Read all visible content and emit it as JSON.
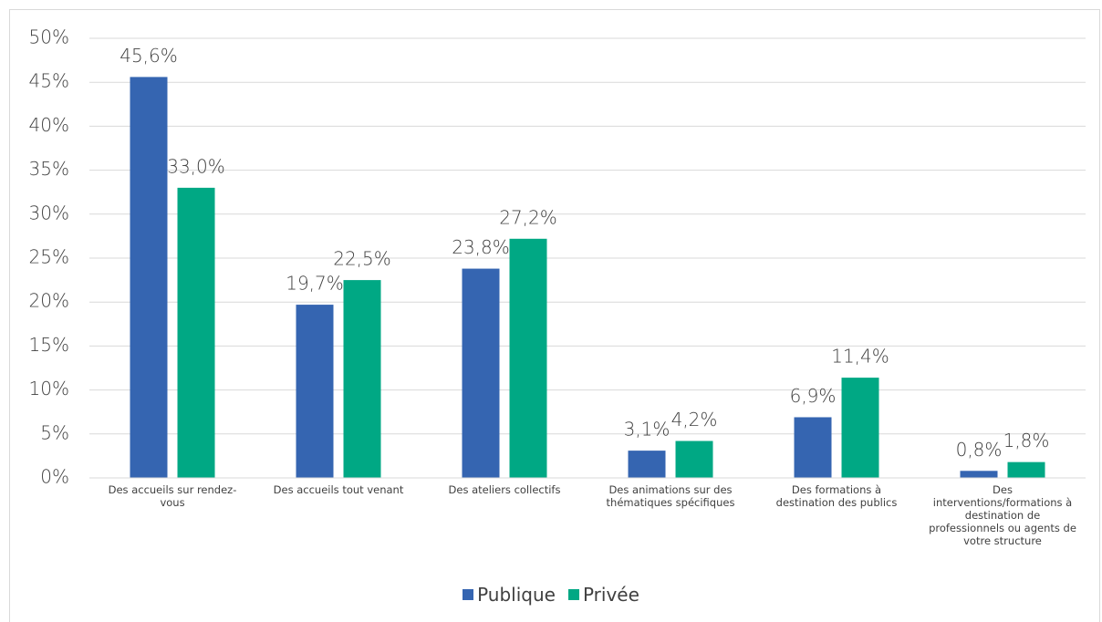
{
  "chart_data": {
    "type": "bar",
    "categories": [
      "Des accueils sur rendez-vous",
      "Des accueils tout venant",
      "Des ateliers collectifs",
      "Des animations sur des thématiques spécifiques",
      "Des formations à destination des publics",
      "Des interventions/formations à destination de professionnels ou agents de votre structure"
    ],
    "series": [
      {
        "name": "Publique",
        "color": "#3565b1",
        "values": [
          45.6,
          19.7,
          23.8,
          3.1,
          6.9,
          0.8
        ],
        "value_labels": [
          "45,6%",
          "19,7%",
          "23,8%",
          "3,1%",
          "6,9%",
          "0,8%"
        ]
      },
      {
        "name": "Privée",
        "color": "#00a884",
        "values": [
          33.0,
          22.5,
          27.2,
          4.2,
          11.4,
          1.8
        ],
        "value_labels": [
          "33,0%",
          "22,5%",
          "27,2%",
          "4,2%",
          "11,4%",
          "1,8%"
        ]
      }
    ],
    "ylim": [
      0,
      50
    ],
    "yticks": [
      {
        "value": 0,
        "label": "0%"
      },
      {
        "value": 5,
        "label": "5%"
      },
      {
        "value": 10,
        "label": "10%"
      },
      {
        "value": 15,
        "label": "15%"
      },
      {
        "value": 20,
        "label": "20%"
      },
      {
        "value": 25,
        "label": "25%"
      },
      {
        "value": 30,
        "label": "30%"
      },
      {
        "value": 35,
        "label": "35%"
      },
      {
        "value": 40,
        "label": "40%"
      },
      {
        "value": 45,
        "label": "45%"
      },
      {
        "value": 50,
        "label": "50%"
      }
    ],
    "grid": true,
    "legend": "bottom"
  }
}
